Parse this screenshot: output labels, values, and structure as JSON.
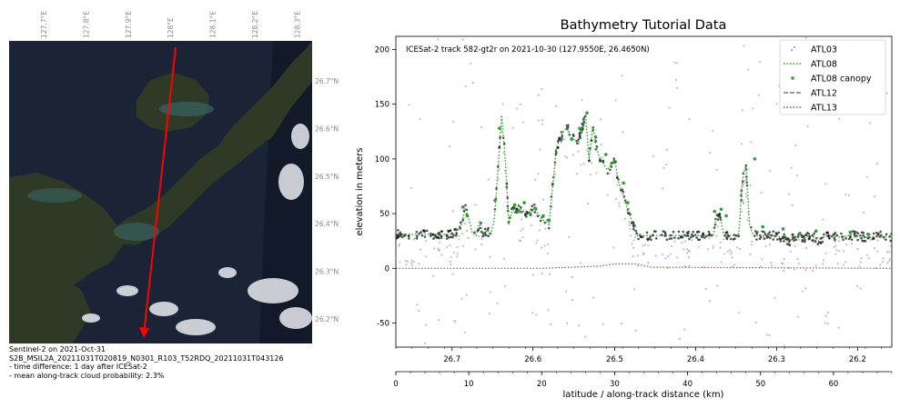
{
  "colors": {
    "atl03": "#8c8c8c",
    "atl08": "#2ca02c",
    "atl08_canopy": "#2ca02c",
    "atl12": "#9467bd",
    "atl13": "#8c564b",
    "track": "#ff0000",
    "map_water": "#1a2436",
    "map_land": "#2e3a26"
  },
  "map": {
    "lon_ticks": [
      "127.7°E",
      "127.8°E",
      "127.9°E",
      "128°E",
      "128.1°E",
      "128.2°E",
      "128.3°E"
    ],
    "lat_ticks": [
      "26.7°N",
      "26.6°N",
      "26.5°N",
      "26.4°N",
      "26.3°N",
      "26.2°N"
    ],
    "caption": {
      "line1": "Sentinel-2 on 2021-Oct-31",
      "line2": "S2B_MSIL2A_20211031T020819_N0301_R103_T52RDQ_20211031T043126",
      "line3": "- time difference: 1 day after ICESat-2",
      "line4": "- mean along-track cloud probability: 2.3%"
    }
  },
  "chart_data": {
    "type": "scatter",
    "title": "Bathymetry Tutorial Data",
    "annotation": "ICESat-2 track 582-gt2r on 2021-10-30 (127.9550E, 26.4650N)",
    "ylabel": "elevation in meters",
    "xlabel": "latitude / along-track distance (km)",
    "xlim": [
      0,
      68
    ],
    "ylim": [
      -72,
      212
    ],
    "yticks": [
      -50,
      0,
      50,
      100,
      150,
      200
    ],
    "xticks_distance": [
      0,
      10,
      20,
      30,
      40,
      50,
      60
    ],
    "xticks_latitude": [
      {
        "label": "26.7",
        "distance_km": 7.7
      },
      {
        "label": "26.6",
        "distance_km": 18.8
      },
      {
        "label": "26.5",
        "distance_km": 30.0
      },
      {
        "label": "26.4",
        "distance_km": 41.1
      },
      {
        "label": "26.3",
        "distance_km": 52.2
      },
      {
        "label": "26.2",
        "distance_km": 63.3
      }
    ],
    "legend_position": "top-right",
    "legend": [
      "ATL03",
      "ATL08",
      "ATL08 canopy",
      "ATL12",
      "ATL13"
    ],
    "atl08_ground_profile": {
      "x": [
        0,
        8,
        8.5,
        9,
        9.5,
        10,
        10.5,
        11,
        11.5,
        12,
        12.5,
        13,
        13.5,
        14,
        14.5,
        15,
        15.5,
        16,
        16.5,
        17,
        18,
        19,
        20,
        21,
        22,
        23,
        23.5,
        24,
        25,
        26,
        26.5,
        27,
        27.5,
        28,
        29,
        30,
        30.5,
        31,
        32,
        33,
        33.5,
        34,
        35,
        36,
        37,
        38,
        39,
        40,
        41,
        42,
        43,
        43.5,
        44,
        44.5,
        45,
        45.5,
        46,
        46.5,
        47,
        47.5,
        48,
        48.5,
        49,
        49.5,
        50,
        51,
        52,
        53,
        54,
        55,
        56,
        57,
        58,
        59,
        60,
        61,
        62,
        63,
        64,
        65,
        66,
        67,
        68
      ],
      "y": [
        31,
        31,
        35,
        40,
        55,
        45,
        32,
        30,
        42,
        30,
        35,
        30,
        45,
        90,
        140,
        100,
        40,
        55,
        50,
        55,
        50,
        55,
        45,
        40,
        110,
        125,
        130,
        120,
        115,
        140,
        100,
        130,
        110,
        100,
        90,
        100,
        80,
        70,
        50,
        30,
        30,
        30,
        30,
        30,
        30,
        30,
        30,
        30,
        30,
        30,
        30,
        30,
        50,
        45,
        30,
        30,
        30,
        30,
        30,
        80,
        95,
        40,
        30,
        30,
        30,
        30,
        30,
        28,
        25,
        30,
        28,
        30,
        25,
        30,
        30,
        28,
        30,
        30,
        29,
        28,
        30,
        29,
        29
      ]
    },
    "atl13_surface_profile": {
      "x": [
        0,
        20,
        28,
        30,
        33,
        35,
        68
      ],
      "y": [
        0,
        0,
        2,
        4,
        4,
        1,
        0
      ]
    },
    "atl08_canopy_points": {
      "x": [
        9.2,
        9.8,
        13.6,
        14.2,
        16.3,
        16.9,
        17.6,
        18.4,
        19.1,
        20.2,
        21.0,
        24.1,
        25.2,
        26.2,
        27.4,
        28.8,
        29.6,
        31.2,
        31.8,
        43.7,
        44.6,
        45.3,
        49.2,
        50.3,
        53.1,
        55.4,
        57.6,
        62.3,
        64.8
      ],
      "y": [
        56,
        48,
        62,
        128,
        58,
        52,
        60,
        50,
        55,
        48,
        44,
        118,
        128,
        142,
        120,
        104,
        96,
        78,
        60,
        52,
        54,
        48,
        100,
        38,
        36,
        32,
        34,
        33,
        31
      ]
    }
  }
}
